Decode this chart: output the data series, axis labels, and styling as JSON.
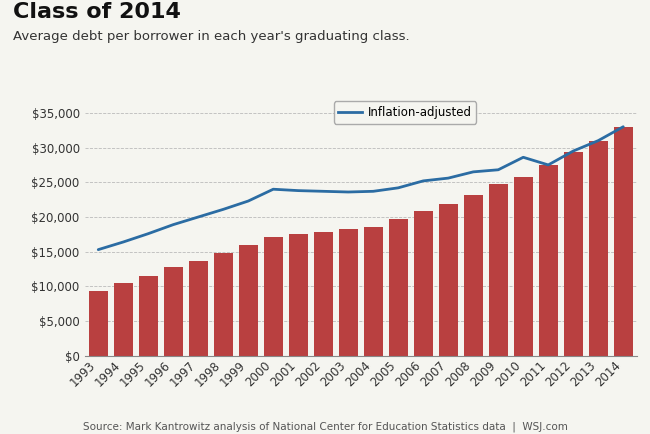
{
  "title": "Class of 2014",
  "subtitle": "Average debt per borrower in each year's graduating class.",
  "source": "Source: Mark Kantrowitz analysis of National Center for Education Statistics data  |  WSJ.com",
  "years": [
    1993,
    1994,
    1995,
    1996,
    1997,
    1998,
    1999,
    2000,
    2001,
    2002,
    2003,
    2004,
    2005,
    2006,
    2007,
    2008,
    2009,
    2010,
    2011,
    2012,
    2013,
    2014
  ],
  "bar_values": [
    9400,
    10500,
    11500,
    12800,
    13700,
    14800,
    16000,
    17100,
    17500,
    17900,
    18200,
    18500,
    19700,
    20900,
    21900,
    23200,
    24700,
    25800,
    27500,
    29300,
    31000,
    33000
  ],
  "line_values": [
    15300,
    16400,
    17600,
    18900,
    20000,
    21100,
    22300,
    24000,
    23800,
    23700,
    23600,
    23700,
    24200,
    25200,
    25600,
    26500,
    26800,
    28600,
    27500,
    29500,
    31000,
    33000
  ],
  "bar_color": "#b94040",
  "line_color": "#2b6ca3",
  "background_color": "#f5f5f0",
  "ylim": [
    0,
    37500
  ],
  "yticks": [
    0,
    5000,
    10000,
    15000,
    20000,
    25000,
    30000,
    35000
  ],
  "legend_label": "Inflation-adjusted",
  "title_fontsize": 16,
  "subtitle_fontsize": 9.5,
  "tick_fontsize": 8.5,
  "source_fontsize": 7.5,
  "grid_color": "#bbbbbb",
  "spine_color": "#888888"
}
